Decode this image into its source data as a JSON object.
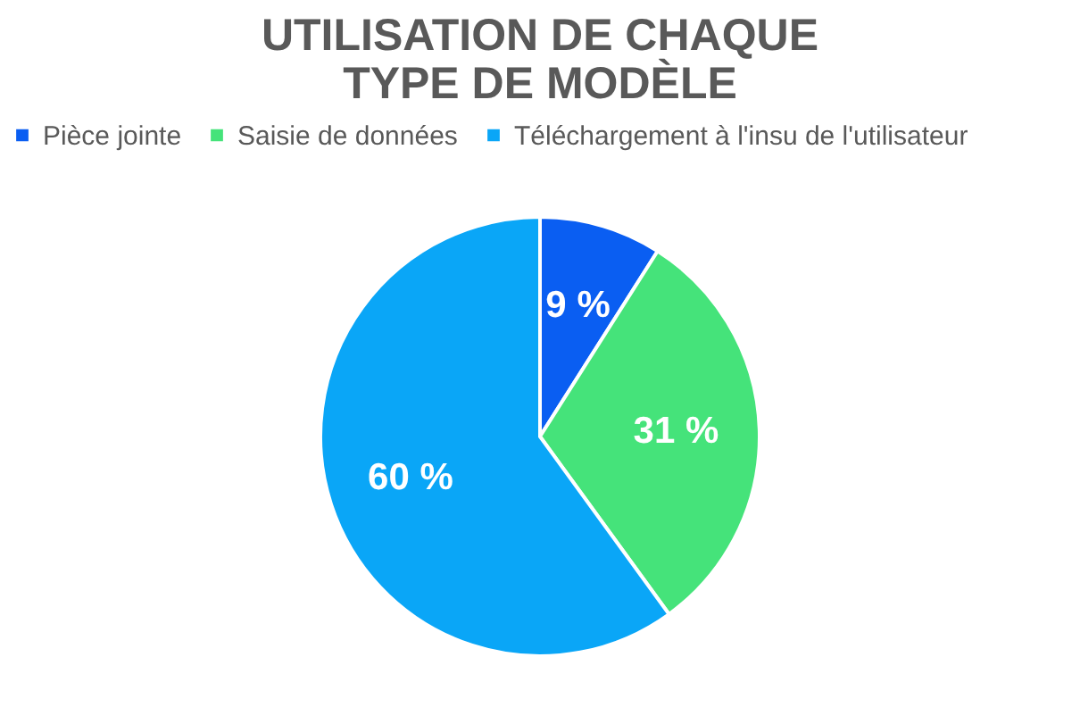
{
  "chart_data": {
    "type": "pie",
    "title": [
      "UTILISATION DE CHAQUE",
      "TYPE DE MODÈLE"
    ],
    "categories": [
      "Pièce jointe",
      "Saisie de données",
      "Téléchargement à l'insu de l'utilisateur"
    ],
    "values": [
      9,
      31,
      60
    ],
    "colors": [
      "#0a5ef2",
      "#45e37a",
      "#0aa6f7"
    ],
    "value_labels": [
      "9 %",
      "31 %",
      "60 %"
    ],
    "legend": "top"
  }
}
